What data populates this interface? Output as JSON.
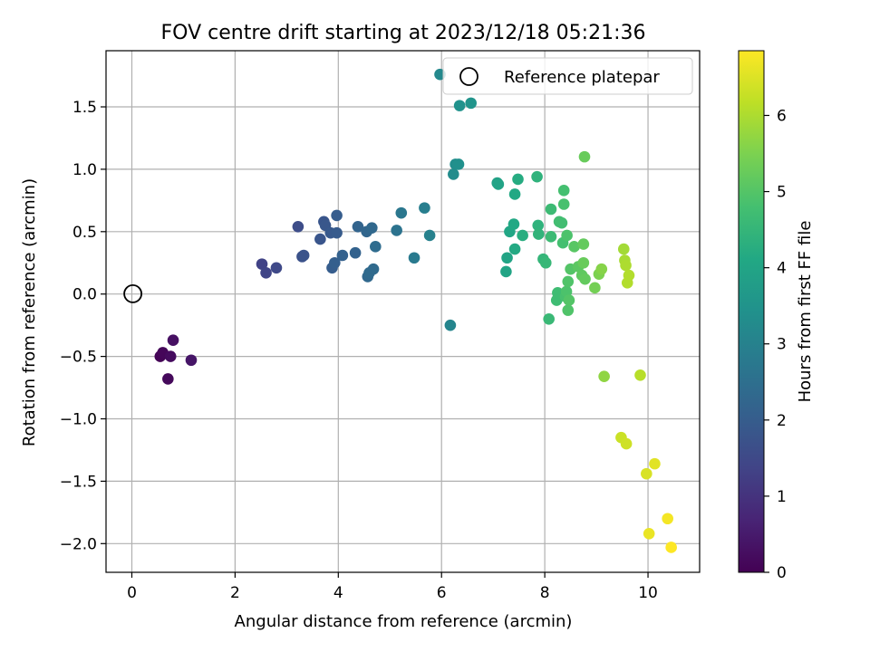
{
  "chart_data": {
    "type": "scatter",
    "title": "FOV centre drift starting at 2023/12/18 05:21:36",
    "xlabel": "Angular distance from reference (arcmin)",
    "ylabel": "Rotation from reference (arcmin)",
    "xlim": [
      -0.5,
      11.0
    ],
    "ylim": [
      -2.23,
      1.95
    ],
    "xticks": [
      0,
      2,
      4,
      6,
      8,
      10
    ],
    "xtick_labels": [
      "0",
      "2",
      "4",
      "6",
      "8",
      "10"
    ],
    "yticks": [
      -2.0,
      -1.5,
      -1.0,
      -0.5,
      0.0,
      0.5,
      1.0,
      1.5
    ],
    "ytick_labels": [
      "−2.0",
      "−1.5",
      "−1.0",
      "−0.5",
      "0.0",
      "0.5",
      "1.0",
      "1.5"
    ],
    "grid": true,
    "legend": {
      "position": "top-right",
      "label": "Reference platepar"
    },
    "reference_point": {
      "x": 0,
      "y": 0,
      "label": "Reference platepar"
    },
    "colorbar": {
      "label": "Hours from first FF file",
      "colormap": "viridis",
      "range": [
        0,
        6.85
      ],
      "ticks": [
        0,
        1,
        2,
        3,
        4,
        5,
        6
      ],
      "tick_labels": [
        "0",
        "1",
        "2",
        "3",
        "4",
        "5",
        "6"
      ]
    },
    "points": [
      {
        "x": 0.55,
        "y": -0.5,
        "h": 0.05
      },
      {
        "x": 0.6,
        "y": -0.47,
        "h": 0.1
      },
      {
        "x": 0.75,
        "y": -0.5,
        "h": 0.2
      },
      {
        "x": 0.7,
        "y": -0.68,
        "h": 0.15
      },
      {
        "x": 0.8,
        "y": -0.37,
        "h": 0.3
      },
      {
        "x": 1.15,
        "y": -0.53,
        "h": 0.4
      },
      {
        "x": 2.52,
        "y": 0.24,
        "h": 1.35
      },
      {
        "x": 2.6,
        "y": 0.17,
        "h": 1.4
      },
      {
        "x": 2.8,
        "y": 0.21,
        "h": 1.5
      },
      {
        "x": 3.22,
        "y": 0.54,
        "h": 1.6
      },
      {
        "x": 3.3,
        "y": 0.3,
        "h": 1.7
      },
      {
        "x": 3.33,
        "y": 0.31,
        "h": 1.75
      },
      {
        "x": 3.65,
        "y": 0.44,
        "h": 1.8
      },
      {
        "x": 3.72,
        "y": 0.58,
        "h": 1.8
      },
      {
        "x": 3.75,
        "y": 0.55,
        "h": 1.85
      },
      {
        "x": 3.85,
        "y": 0.49,
        "h": 1.9
      },
      {
        "x": 3.97,
        "y": 0.49,
        "h": 1.95
      },
      {
        "x": 3.97,
        "y": 0.63,
        "h": 2.0
      },
      {
        "x": 3.88,
        "y": 0.21,
        "h": 2.0
      },
      {
        "x": 3.93,
        "y": 0.25,
        "h": 2.05
      },
      {
        "x": 4.08,
        "y": 0.31,
        "h": 2.1
      },
      {
        "x": 4.33,
        "y": 0.33,
        "h": 2.15
      },
      {
        "x": 4.38,
        "y": 0.54,
        "h": 2.2
      },
      {
        "x": 4.55,
        "y": 0.5,
        "h": 2.25
      },
      {
        "x": 4.65,
        "y": 0.53,
        "h": 2.3
      },
      {
        "x": 4.57,
        "y": 0.14,
        "h": 2.3
      },
      {
        "x": 4.6,
        "y": 0.17,
        "h": 2.35
      },
      {
        "x": 4.68,
        "y": 0.2,
        "h": 2.35
      },
      {
        "x": 4.72,
        "y": 0.38,
        "h": 2.4
      },
      {
        "x": 5.13,
        "y": 0.51,
        "h": 2.6
      },
      {
        "x": 5.22,
        "y": 0.65,
        "h": 2.7
      },
      {
        "x": 5.47,
        "y": 0.29,
        "h": 2.8
      },
      {
        "x": 5.67,
        "y": 0.69,
        "h": 2.9
      },
      {
        "x": 5.77,
        "y": 0.47,
        "h": 3.0
      },
      {
        "x": 6.17,
        "y": -0.25,
        "h": 3.1
      },
      {
        "x": 5.97,
        "y": 1.76,
        "h": 3.2
      },
      {
        "x": 6.23,
        "y": 0.96,
        "h": 3.3
      },
      {
        "x": 6.27,
        "y": 1.04,
        "h": 3.35
      },
      {
        "x": 6.33,
        "y": 1.04,
        "h": 3.4
      },
      {
        "x": 6.35,
        "y": 1.51,
        "h": 3.45
      },
      {
        "x": 6.57,
        "y": 1.53,
        "h": 3.5
      },
      {
        "x": 7.08,
        "y": 0.89,
        "h": 3.9
      },
      {
        "x": 7.1,
        "y": 0.88,
        "h": 3.95
      },
      {
        "x": 7.25,
        "y": 0.18,
        "h": 4.0
      },
      {
        "x": 7.27,
        "y": 0.29,
        "h": 4.0
      },
      {
        "x": 7.32,
        "y": 0.5,
        "h": 4.05
      },
      {
        "x": 7.4,
        "y": 0.56,
        "h": 4.1
      },
      {
        "x": 7.42,
        "y": 0.8,
        "h": 4.1
      },
      {
        "x": 7.42,
        "y": 0.36,
        "h": 4.15
      },
      {
        "x": 7.48,
        "y": 0.92,
        "h": 4.2
      },
      {
        "x": 7.57,
        "y": 0.47,
        "h": 4.25
      },
      {
        "x": 7.85,
        "y": 0.94,
        "h": 4.4
      },
      {
        "x": 7.87,
        "y": 0.55,
        "h": 4.4
      },
      {
        "x": 7.88,
        "y": 0.48,
        "h": 4.45
      },
      {
        "x": 7.97,
        "y": 0.28,
        "h": 4.5
      },
      {
        "x": 8.02,
        "y": 0.25,
        "h": 4.55
      },
      {
        "x": 8.08,
        "y": -0.2,
        "h": 4.6
      },
      {
        "x": 8.12,
        "y": 0.68,
        "h": 4.65
      },
      {
        "x": 8.12,
        "y": 0.46,
        "h": 4.65
      },
      {
        "x": 8.23,
        "y": -0.05,
        "h": 4.7
      },
      {
        "x": 8.25,
        "y": 0.01,
        "h": 4.7
      },
      {
        "x": 8.28,
        "y": 0.58,
        "h": 4.75
      },
      {
        "x": 8.33,
        "y": 0.57,
        "h": 4.75
      },
      {
        "x": 8.35,
        "y": 0.41,
        "h": 4.8
      },
      {
        "x": 8.37,
        "y": 0.83,
        "h": 4.8
      },
      {
        "x": 8.37,
        "y": 0.72,
        "h": 4.85
      },
      {
        "x": 8.4,
        "y": -0.02,
        "h": 4.85
      },
      {
        "x": 8.42,
        "y": 0.02,
        "h": 4.9
      },
      {
        "x": 8.43,
        "y": 0.47,
        "h": 4.9
      },
      {
        "x": 8.45,
        "y": 0.1,
        "h": 4.95
      },
      {
        "x": 8.45,
        "y": -0.13,
        "h": 4.95
      },
      {
        "x": 8.47,
        "y": -0.05,
        "h": 5.0
      },
      {
        "x": 8.5,
        "y": 0.2,
        "h": 5.0
      },
      {
        "x": 8.57,
        "y": 0.38,
        "h": 5.05
      },
      {
        "x": 8.65,
        "y": 0.22,
        "h": 5.1
      },
      {
        "x": 8.72,
        "y": 0.15,
        "h": 5.15
      },
      {
        "x": 8.75,
        "y": 0.4,
        "h": 5.2
      },
      {
        "x": 8.78,
        "y": 0.12,
        "h": 5.2
      },
      {
        "x": 8.77,
        "y": 1.1,
        "h": 5.25
      },
      {
        "x": 8.75,
        "y": 0.25,
        "h": 5.25
      },
      {
        "x": 8.97,
        "y": 0.05,
        "h": 5.4
      },
      {
        "x": 9.05,
        "y": 0.16,
        "h": 5.5
      },
      {
        "x": 9.1,
        "y": 0.2,
        "h": 5.6
      },
      {
        "x": 9.15,
        "y": -0.66,
        "h": 5.7
      },
      {
        "x": 9.53,
        "y": 0.36,
        "h": 5.9
      },
      {
        "x": 9.55,
        "y": 0.27,
        "h": 5.95
      },
      {
        "x": 9.57,
        "y": 0.23,
        "h": 6.0
      },
      {
        "x": 9.6,
        "y": 0.09,
        "h": 6.05
      },
      {
        "x": 9.63,
        "y": 0.15,
        "h": 6.05
      },
      {
        "x": 9.85,
        "y": -0.65,
        "h": 6.1
      },
      {
        "x": 9.48,
        "y": -1.15,
        "h": 6.3
      },
      {
        "x": 9.58,
        "y": -1.2,
        "h": 6.35
      },
      {
        "x": 9.97,
        "y": -1.44,
        "h": 6.45
      },
      {
        "x": 10.13,
        "y": -1.36,
        "h": 6.55
      },
      {
        "x": 10.02,
        "y": -1.92,
        "h": 6.65
      },
      {
        "x": 10.38,
        "y": -1.8,
        "h": 6.75
      },
      {
        "x": 10.45,
        "y": -2.03,
        "h": 6.85
      }
    ]
  }
}
